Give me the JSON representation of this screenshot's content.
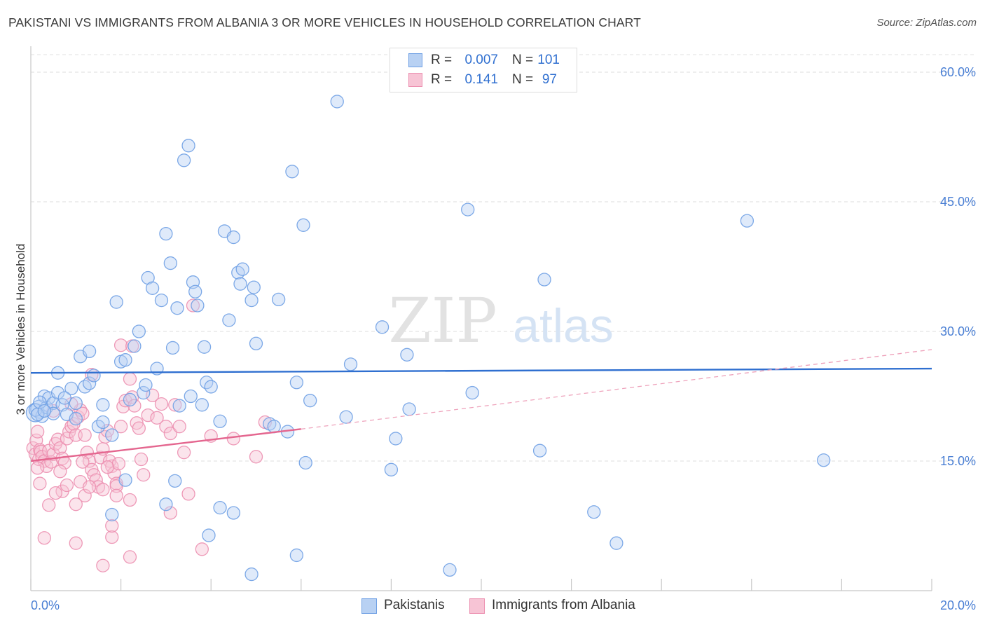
{
  "header": {
    "title": "PAKISTANI VS IMMIGRANTS FROM ALBANIA 3 OR MORE VEHICLES IN HOUSEHOLD CORRELATION CHART",
    "source": "Source: ZipAtlas.com"
  },
  "watermark": {
    "zip": "ZIP",
    "atlas": "atlas"
  },
  "stats": {
    "rows": [
      {
        "r_label": "R =",
        "r_value": "0.007",
        "n_label": "N =",
        "n_value": "101",
        "color": "#6fa0e4",
        "fill": "#b8d1f3"
      },
      {
        "r_label": "R =",
        "r_value": "0.141",
        "n_label": "N =",
        "n_value": "97",
        "color": "#ec8fb0",
        "fill": "#f7c4d5"
      }
    ]
  },
  "legend": {
    "items": [
      {
        "label": "Pakistanis",
        "color": "#6fa0e4",
        "fill": "#b8d1f3"
      },
      {
        "label": "Immigrants from Albania",
        "color": "#ec8fb0",
        "fill": "#f7c4d5"
      }
    ]
  },
  "chart_data": {
    "type": "scatter",
    "title": "PAKISTANI VS IMMIGRANTS FROM ALBANIA 3 OR MORE VEHICLES IN HOUSEHOLD CORRELATION CHART",
    "xlabel": "",
    "ylabel": "3 or more Vehicles in Household",
    "xlim": [
      0,
      20
    ],
    "ylim": [
      0,
      63
    ],
    "x_tick_labels": [
      "0.0%",
      "20.0%"
    ],
    "y_ticks": [
      15,
      30,
      45,
      60
    ],
    "y_tick_labels": [
      "15.0%",
      "30.0%",
      "45.0%",
      "60.0%"
    ],
    "grid": true,
    "legend_position": "bottom",
    "series": [
      {
        "name": "Pakistanis",
        "color": "#6fa0e4",
        "fill": "#b8d1f3",
        "trend": {
          "x": [
            0,
            20
          ],
          "y": [
            25.2,
            25.7
          ],
          "dashed_to": null
        },
        "points": [
          [
            0.1,
            20.6
          ],
          [
            0.2,
            21.0
          ],
          [
            0.25,
            20.2
          ],
          [
            0.3,
            22.5
          ],
          [
            0.35,
            21.2
          ],
          [
            0.4,
            22.3
          ],
          [
            0.5,
            21.7
          ],
          [
            0.6,
            22.9
          ],
          [
            0.7,
            21.5
          ],
          [
            0.8,
            20.4
          ],
          [
            0.1,
            20.9
          ],
          [
            0.15,
            20.4
          ],
          [
            0.2,
            21.8
          ],
          [
            0.6,
            25.2
          ],
          [
            0.9,
            23.4
          ],
          [
            1.0,
            21.7
          ],
          [
            1.1,
            27.1
          ],
          [
            1.2,
            23.6
          ],
          [
            1.3,
            24.0
          ],
          [
            1.4,
            24.9
          ],
          [
            0.75,
            22.3
          ],
          [
            1.3,
            27.7
          ],
          [
            1.5,
            19.0
          ],
          [
            1.6,
            21.5
          ],
          [
            1.8,
            18.0
          ],
          [
            1.9,
            33.4
          ],
          [
            2.0,
            26.5
          ],
          [
            2.1,
            26.7
          ],
          [
            2.2,
            22.1
          ],
          [
            2.3,
            28.3
          ],
          [
            2.4,
            30.0
          ],
          [
            2.5,
            22.9
          ],
          [
            2.55,
            23.8
          ],
          [
            2.6,
            36.2
          ],
          [
            2.7,
            35.0
          ],
          [
            2.8,
            25.7
          ],
          [
            2.9,
            33.6
          ],
          [
            3.0,
            41.3
          ],
          [
            3.1,
            37.9
          ],
          [
            3.15,
            28.1
          ],
          [
            3.25,
            32.7
          ],
          [
            3.3,
            21.4
          ],
          [
            3.4,
            49.8
          ],
          [
            3.5,
            51.5
          ],
          [
            3.55,
            22.5
          ],
          [
            3.6,
            35.7
          ],
          [
            3.65,
            34.6
          ],
          [
            3.7,
            33.0
          ],
          [
            3.8,
            21.5
          ],
          [
            3.85,
            28.2
          ],
          [
            3.9,
            24.1
          ],
          [
            4.0,
            23.6
          ],
          [
            4.2,
            19.6
          ],
          [
            4.3,
            41.6
          ],
          [
            4.4,
            31.3
          ],
          [
            4.5,
            40.9
          ],
          [
            4.6,
            36.8
          ],
          [
            4.65,
            35.5
          ],
          [
            4.7,
            37.2
          ],
          [
            4.9,
            33.6
          ],
          [
            4.95,
            35.1
          ],
          [
            5.0,
            28.6
          ],
          [
            5.3,
            19.3
          ],
          [
            5.4,
            19.0
          ],
          [
            5.5,
            33.7
          ],
          [
            5.8,
            48.5
          ],
          [
            5.9,
            24.1
          ],
          [
            6.05,
            42.3
          ],
          [
            6.2,
            22.0
          ],
          [
            6.8,
            56.6
          ],
          [
            7.0,
            20.1
          ],
          [
            7.1,
            26.2
          ],
          [
            7.8,
            30.5
          ],
          [
            8.1,
            17.6
          ],
          [
            8.35,
            27.3
          ],
          [
            8.4,
            21.0
          ],
          [
            9.7,
            44.1
          ],
          [
            9.8,
            22.9
          ],
          [
            11.4,
            36.0
          ],
          [
            15.9,
            42.8
          ],
          [
            17.6,
            15.1
          ],
          [
            11.3,
            16.2
          ],
          [
            8.0,
            14.0
          ],
          [
            5.7,
            18.4
          ],
          [
            6.1,
            14.8
          ],
          [
            12.5,
            9.1
          ],
          [
            13.0,
            5.5
          ],
          [
            9.3,
            2.4
          ],
          [
            5.9,
            4.1
          ],
          [
            4.9,
            1.9
          ],
          [
            4.2,
            9.6
          ],
          [
            3.95,
            6.4
          ],
          [
            3.0,
            10.0
          ],
          [
            1.8,
            8.8
          ],
          [
            3.2,
            12.7
          ],
          [
            2.1,
            12.8
          ],
          [
            1.0,
            19.9
          ],
          [
            1.6,
            19.5
          ],
          [
            0.5,
            20.5
          ],
          [
            0.3,
            20.8
          ],
          [
            4.5,
            9.0
          ]
        ]
      },
      {
        "name": "Immigrants from Albania",
        "color": "#ec8fb0",
        "fill": "#f7c4d5",
        "trend": {
          "x": [
            0,
            6.0
          ],
          "y": [
            15.0,
            18.7
          ],
          "dashed_to": {
            "x": 20,
            "y": 27.9
          }
        },
        "points": [
          [
            0.05,
            16.5
          ],
          [
            0.1,
            15.8
          ],
          [
            0.12,
            17.4
          ],
          [
            0.15,
            18.4
          ],
          [
            0.18,
            15.2
          ],
          [
            0.2,
            16.3
          ],
          [
            0.22,
            16.1
          ],
          [
            0.25,
            15.5
          ],
          [
            0.3,
            15.0
          ],
          [
            0.35,
            14.4
          ],
          [
            0.4,
            16.2
          ],
          [
            0.45,
            14.9
          ],
          [
            0.5,
            15.8
          ],
          [
            0.55,
            17.0
          ],
          [
            0.6,
            17.5
          ],
          [
            0.65,
            16.5
          ],
          [
            0.7,
            15.3
          ],
          [
            0.75,
            14.8
          ],
          [
            0.8,
            17.6
          ],
          [
            0.85,
            18.4
          ],
          [
            0.9,
            19.0
          ],
          [
            0.95,
            19.3
          ],
          [
            1.0,
            18.0
          ],
          [
            1.05,
            20.1
          ],
          [
            1.1,
            20.9
          ],
          [
            1.15,
            20.5
          ],
          [
            1.2,
            18.0
          ],
          [
            1.25,
            16.0
          ],
          [
            1.3,
            15.0
          ],
          [
            1.35,
            14.0
          ],
          [
            1.4,
            13.4
          ],
          [
            1.45,
            12.8
          ],
          [
            1.5,
            12.0
          ],
          [
            1.55,
            15.4
          ],
          [
            1.6,
            16.4
          ],
          [
            1.65,
            17.8
          ],
          [
            1.7,
            18.5
          ],
          [
            1.75,
            15.0
          ],
          [
            1.8,
            14.4
          ],
          [
            1.85,
            13.6
          ],
          [
            1.9,
            12.4
          ],
          [
            1.95,
            14.7
          ],
          [
            2.0,
            19.0
          ],
          [
            2.05,
            21.3
          ],
          [
            2.1,
            22.0
          ],
          [
            2.2,
            24.5
          ],
          [
            2.25,
            22.4
          ],
          [
            2.3,
            21.4
          ],
          [
            2.35,
            19.4
          ],
          [
            2.4,
            18.8
          ],
          [
            2.45,
            15.2
          ],
          [
            2.5,
            13.4
          ],
          [
            2.6,
            20.3
          ],
          [
            2.7,
            22.6
          ],
          [
            2.8,
            20.0
          ],
          [
            2.9,
            21.6
          ],
          [
            3.0,
            19.0
          ],
          [
            3.1,
            18.2
          ],
          [
            3.2,
            21.5
          ],
          [
            3.3,
            19.0
          ],
          [
            3.4,
            16.0
          ],
          [
            3.5,
            11.2
          ],
          [
            3.6,
            33.0
          ],
          [
            4.0,
            17.9
          ],
          [
            4.5,
            17.6
          ],
          [
            5.0,
            15.5
          ],
          [
            5.2,
            19.5
          ],
          [
            0.3,
            6.1
          ],
          [
            0.4,
            9.9
          ],
          [
            0.7,
            11.5
          ],
          [
            1.0,
            10.0
          ],
          [
            1.0,
            5.5
          ],
          [
            1.2,
            11.0
          ],
          [
            1.6,
            2.9
          ],
          [
            1.8,
            6.2
          ],
          [
            1.8,
            7.5
          ],
          [
            2.2,
            3.9
          ],
          [
            2.2,
            10.5
          ],
          [
            3.1,
            9.0
          ],
          [
            3.8,
            4.8
          ],
          [
            0.2,
            12.4
          ],
          [
            0.55,
            11.3
          ],
          [
            0.8,
            12.2
          ],
          [
            1.1,
            12.6
          ],
          [
            1.3,
            12.0
          ],
          [
            1.6,
            11.7
          ],
          [
            1.9,
            12.1
          ],
          [
            2.0,
            28.4
          ],
          [
            2.25,
            28.3
          ],
          [
            1.35,
            25.0
          ],
          [
            0.5,
            20.8
          ],
          [
            0.9,
            21.6
          ],
          [
            1.15,
            14.9
          ],
          [
            1.7,
            14.3
          ],
          [
            1.9,
            11.0
          ],
          [
            0.15,
            14.2
          ],
          [
            0.65,
            13.8
          ]
        ]
      }
    ]
  }
}
